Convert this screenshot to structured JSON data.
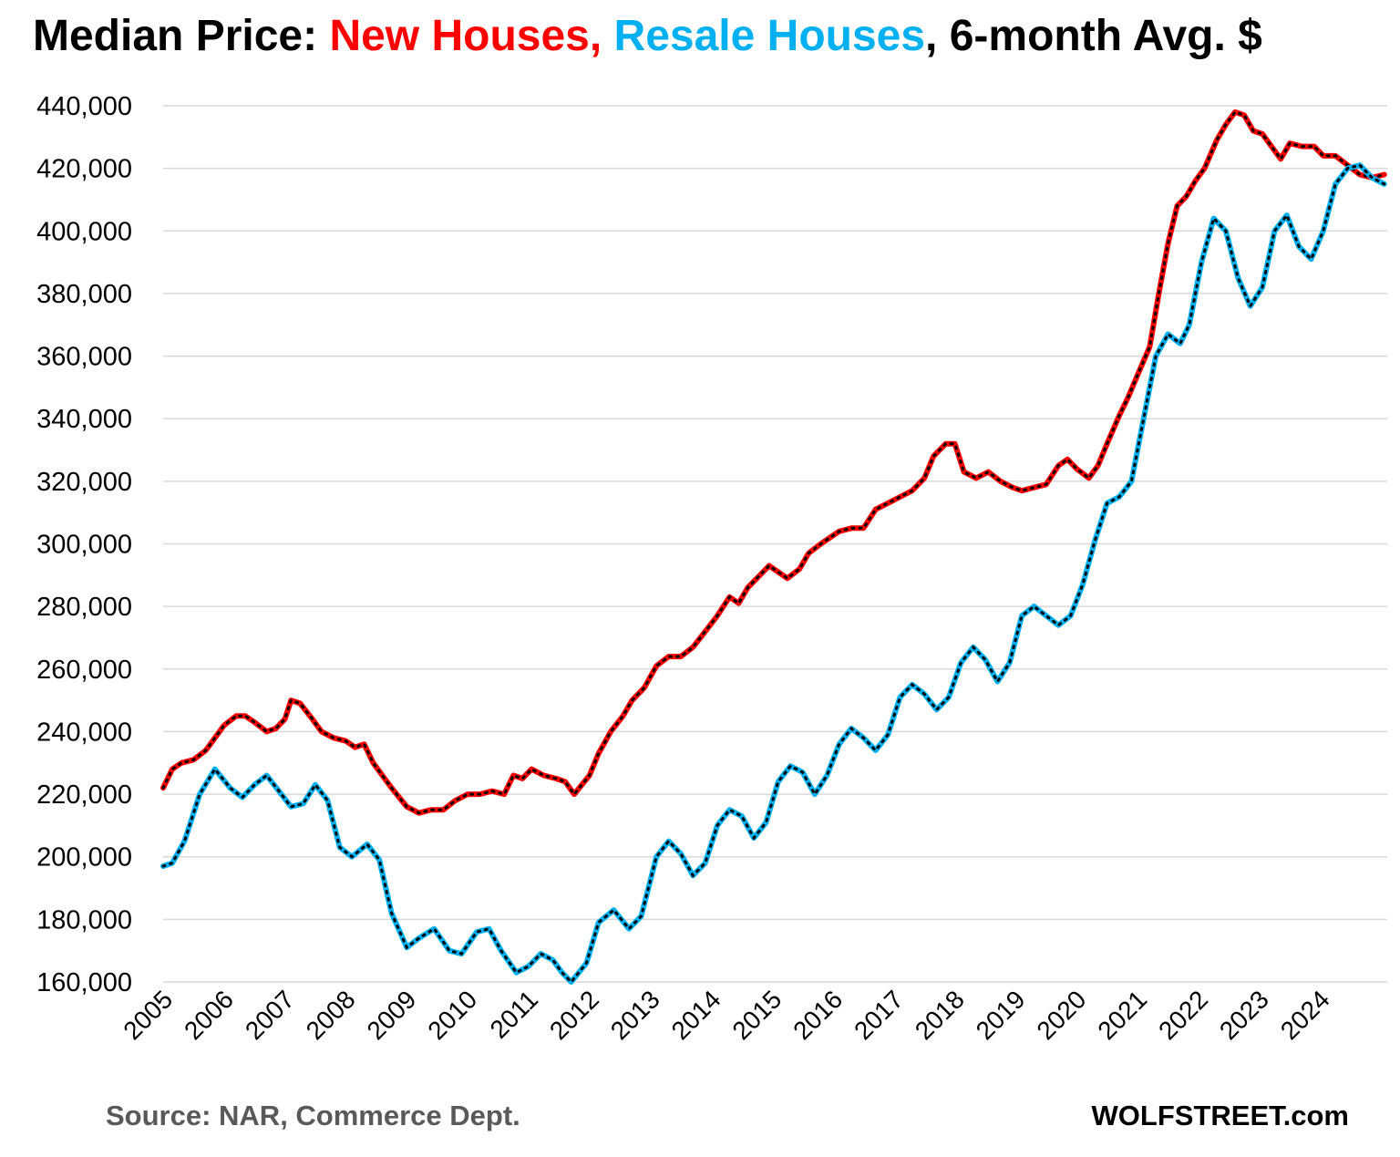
{
  "title": {
    "part1": "Median Price: ",
    "part2": "New Houses, ",
    "part3": "Resale Houses",
    "part4": ", 6-month Avg. $"
  },
  "footer": {
    "source": "Source: NAR, Commerce Dept.",
    "brand": "WOLFSTREET.com"
  },
  "colors": {
    "new_houses": "#ff0000",
    "resale_houses": "#00b0f0",
    "title": "#000000",
    "gridline": "#d9d9d9",
    "source_text": "#595959",
    "marker": "#000000"
  },
  "chart_data": {
    "type": "line",
    "title": "Median Price: New Houses, Resale Houses, 6-month Avg. $",
    "xlabel": "",
    "ylabel": "",
    "ylim": [
      160000,
      440000
    ],
    "xlim": [
      2005,
      2025.1
    ],
    "grid": "horizontal",
    "legend": "none (series named by colored words in title)",
    "y_ticks": [
      "160,000",
      "180,000",
      "200,000",
      "220,000",
      "240,000",
      "260,000",
      "280,000",
      "300,000",
      "320,000",
      "340,000",
      "360,000",
      "380,000",
      "400,000",
      "420,000",
      "440,000"
    ],
    "x_ticks": [
      "2005",
      "2006",
      "2007",
      "2008",
      "2009",
      "2010",
      "2011",
      "2012",
      "2013",
      "2014",
      "2015",
      "2016",
      "2017",
      "2018",
      "2019",
      "2020",
      "2021",
      "2022",
      "2023",
      "2024"
    ],
    "series": [
      {
        "name": "New Houses",
        "color": "#ff0000",
        "points": [
          [
            2005.0,
            222000
          ],
          [
            2005.15,
            228000
          ],
          [
            2005.3,
            230000
          ],
          [
            2005.5,
            231000
          ],
          [
            2005.7,
            234000
          ],
          [
            2005.85,
            238000
          ],
          [
            2006.0,
            242000
          ],
          [
            2006.2,
            245000
          ],
          [
            2006.35,
            245000
          ],
          [
            2006.5,
            243000
          ],
          [
            2006.7,
            240000
          ],
          [
            2006.85,
            241000
          ],
          [
            2007.0,
            244000
          ],
          [
            2007.1,
            250000
          ],
          [
            2007.25,
            249000
          ],
          [
            2007.45,
            244000
          ],
          [
            2007.6,
            240000
          ],
          [
            2007.8,
            238000
          ],
          [
            2008.0,
            237000
          ],
          [
            2008.15,
            235000
          ],
          [
            2008.3,
            236000
          ],
          [
            2008.45,
            230000
          ],
          [
            2008.6,
            226000
          ],
          [
            2008.75,
            222000
          ],
          [
            2009.0,
            216000
          ],
          [
            2009.2,
            214000
          ],
          [
            2009.4,
            215000
          ],
          [
            2009.6,
            215000
          ],
          [
            2009.8,
            218000
          ],
          [
            2010.0,
            220000
          ],
          [
            2010.2,
            220000
          ],
          [
            2010.4,
            221000
          ],
          [
            2010.6,
            220000
          ],
          [
            2010.75,
            226000
          ],
          [
            2010.9,
            225000
          ],
          [
            2011.05,
            228000
          ],
          [
            2011.25,
            226000
          ],
          [
            2011.45,
            225000
          ],
          [
            2011.6,
            224000
          ],
          [
            2011.75,
            220000
          ],
          [
            2012.0,
            226000
          ],
          [
            2012.15,
            233000
          ],
          [
            2012.35,
            240000
          ],
          [
            2012.55,
            245000
          ],
          [
            2012.7,
            250000
          ],
          [
            2012.9,
            254000
          ],
          [
            2013.1,
            261000
          ],
          [
            2013.3,
            264000
          ],
          [
            2013.5,
            264000
          ],
          [
            2013.7,
            267000
          ],
          [
            2013.9,
            272000
          ],
          [
            2014.1,
            277000
          ],
          [
            2014.3,
            283000
          ],
          [
            2014.45,
            281000
          ],
          [
            2014.6,
            286000
          ],
          [
            2014.8,
            290000
          ],
          [
            2014.95,
            293000
          ],
          [
            2015.1,
            291000
          ],
          [
            2015.25,
            289000
          ],
          [
            2015.45,
            292000
          ],
          [
            2015.6,
            297000
          ],
          [
            2015.8,
            300000
          ],
          [
            2015.95,
            302000
          ],
          [
            2016.1,
            304000
          ],
          [
            2016.3,
            305000
          ],
          [
            2016.5,
            305000
          ],
          [
            2016.7,
            311000
          ],
          [
            2016.9,
            313000
          ],
          [
            2017.1,
            315000
          ],
          [
            2017.3,
            317000
          ],
          [
            2017.5,
            321000
          ],
          [
            2017.65,
            328000
          ],
          [
            2017.85,
            332000
          ],
          [
            2018.0,
            332000
          ],
          [
            2018.15,
            323000
          ],
          [
            2018.35,
            321000
          ],
          [
            2018.55,
            323000
          ],
          [
            2018.75,
            320000
          ],
          [
            2018.95,
            318000
          ],
          [
            2019.1,
            317000
          ],
          [
            2019.3,
            318000
          ],
          [
            2019.5,
            319000
          ],
          [
            2019.7,
            325000
          ],
          [
            2019.85,
            327000
          ],
          [
            2020.0,
            324000
          ],
          [
            2020.2,
            321000
          ],
          [
            2020.35,
            325000
          ],
          [
            2020.5,
            332000
          ],
          [
            2020.7,
            341000
          ],
          [
            2020.85,
            347000
          ],
          [
            2021.0,
            354000
          ],
          [
            2021.2,
            363000
          ],
          [
            2021.35,
            380000
          ],
          [
            2021.5,
            396000
          ],
          [
            2021.65,
            408000
          ],
          [
            2021.8,
            411000
          ],
          [
            2021.95,
            416000
          ],
          [
            2022.1,
            420000
          ],
          [
            2022.3,
            429000
          ],
          [
            2022.45,
            434000
          ],
          [
            2022.6,
            438000
          ],
          [
            2022.75,
            437000
          ],
          [
            2022.9,
            432000
          ],
          [
            2023.05,
            431000
          ],
          [
            2023.2,
            427000
          ],
          [
            2023.35,
            423000
          ],
          [
            2023.5,
            428000
          ],
          [
            2023.7,
            427000
          ],
          [
            2023.9,
            427000
          ],
          [
            2024.05,
            424000
          ],
          [
            2024.25,
            424000
          ],
          [
            2024.45,
            421000
          ],
          [
            2024.65,
            418000
          ],
          [
            2024.85,
            417000
          ],
          [
            2025.05,
            418000
          ]
        ]
      },
      {
        "name": "Resale Houses",
        "color": "#00b0f0",
        "points": [
          [
            2005.0,
            197000
          ],
          [
            2005.15,
            198000
          ],
          [
            2005.35,
            205000
          ],
          [
            2005.6,
            220000
          ],
          [
            2005.85,
            228000
          ],
          [
            2006.1,
            222000
          ],
          [
            2006.3,
            219000
          ],
          [
            2006.5,
            223000
          ],
          [
            2006.7,
            226000
          ],
          [
            2006.9,
            221000
          ],
          [
            2007.1,
            216000
          ],
          [
            2007.3,
            217000
          ],
          [
            2007.5,
            223000
          ],
          [
            2007.7,
            218000
          ],
          [
            2007.9,
            203000
          ],
          [
            2008.1,
            200000
          ],
          [
            2008.35,
            204000
          ],
          [
            2008.55,
            199000
          ],
          [
            2008.75,
            182000
          ],
          [
            2009.0,
            171000
          ],
          [
            2009.2,
            174000
          ],
          [
            2009.45,
            177000
          ],
          [
            2009.7,
            170000
          ],
          [
            2009.9,
            169000
          ],
          [
            2010.15,
            176000
          ],
          [
            2010.35,
            177000
          ],
          [
            2010.55,
            170000
          ],
          [
            2010.8,
            163000
          ],
          [
            2011.0,
            165000
          ],
          [
            2011.2,
            169000
          ],
          [
            2011.4,
            167000
          ],
          [
            2011.55,
            163000
          ],
          [
            2011.7,
            160000
          ],
          [
            2011.95,
            166000
          ],
          [
            2012.15,
            179000
          ],
          [
            2012.4,
            183000
          ],
          [
            2012.65,
            177000
          ],
          [
            2012.85,
            181000
          ],
          [
            2013.1,
            200000
          ],
          [
            2013.3,
            205000
          ],
          [
            2013.5,
            201000
          ],
          [
            2013.7,
            194000
          ],
          [
            2013.9,
            198000
          ],
          [
            2014.1,
            210000
          ],
          [
            2014.3,
            215000
          ],
          [
            2014.5,
            213000
          ],
          [
            2014.7,
            206000
          ],
          [
            2014.9,
            211000
          ],
          [
            2015.1,
            224000
          ],
          [
            2015.3,
            229000
          ],
          [
            2015.5,
            227000
          ],
          [
            2015.7,
            220000
          ],
          [
            2015.9,
            226000
          ],
          [
            2016.1,
            236000
          ],
          [
            2016.3,
            241000
          ],
          [
            2016.5,
            238000
          ],
          [
            2016.7,
            234000
          ],
          [
            2016.9,
            239000
          ],
          [
            2017.1,
            251000
          ],
          [
            2017.3,
            255000
          ],
          [
            2017.5,
            252000
          ],
          [
            2017.7,
            247000
          ],
          [
            2017.9,
            251000
          ],
          [
            2018.1,
            262000
          ],
          [
            2018.3,
            267000
          ],
          [
            2018.5,
            263000
          ],
          [
            2018.7,
            256000
          ],
          [
            2018.9,
            262000
          ],
          [
            2019.1,
            277000
          ],
          [
            2019.3,
            280000
          ],
          [
            2019.5,
            277000
          ],
          [
            2019.7,
            274000
          ],
          [
            2019.9,
            277000
          ],
          [
            2020.1,
            287000
          ],
          [
            2020.3,
            301000
          ],
          [
            2020.5,
            313000
          ],
          [
            2020.7,
            315000
          ],
          [
            2020.9,
            320000
          ],
          [
            2021.1,
            340000
          ],
          [
            2021.3,
            360000
          ],
          [
            2021.5,
            367000
          ],
          [
            2021.7,
            364000
          ],
          [
            2021.85,
            370000
          ],
          [
            2022.05,
            390000
          ],
          [
            2022.25,
            404000
          ],
          [
            2022.45,
            400000
          ],
          [
            2022.65,
            385000
          ],
          [
            2022.85,
            376000
          ],
          [
            2023.05,
            382000
          ],
          [
            2023.25,
            400000
          ],
          [
            2023.45,
            405000
          ],
          [
            2023.65,
            395000
          ],
          [
            2023.85,
            391000
          ],
          [
            2024.05,
            400000
          ],
          [
            2024.25,
            415000
          ],
          [
            2024.45,
            420000
          ],
          [
            2024.65,
            421000
          ],
          [
            2024.85,
            417000
          ],
          [
            2025.05,
            415000
          ]
        ]
      }
    ]
  }
}
